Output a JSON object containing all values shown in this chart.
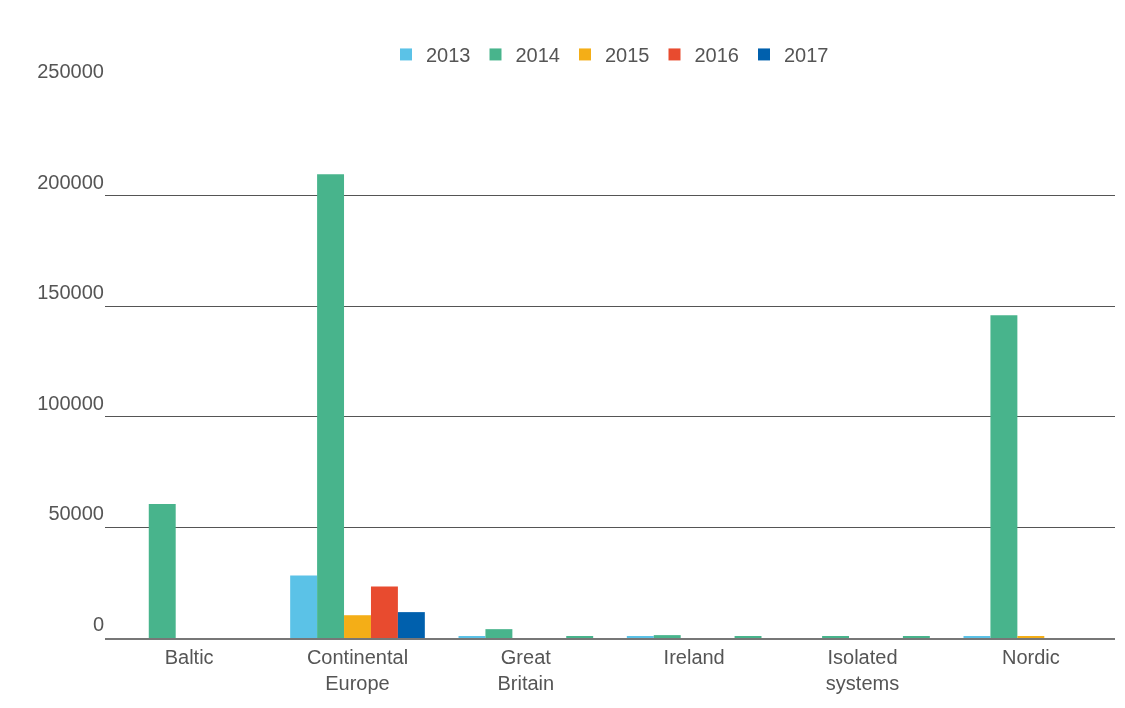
{
  "chart_data": {
    "type": "bar",
    "categories": [
      "Baltic",
      "Continental Europe",
      "Great Britain",
      "Ireland",
      "Isolated systems",
      "Nordic"
    ],
    "series": [
      {
        "name": "2013",
        "color": "#5bc2e7",
        "values": [
          0,
          28300,
          600,
          700,
          0,
          900
        ]
      },
      {
        "name": "2014",
        "color": "#48b48c",
        "values": [
          60600,
          209600,
          4000,
          1300,
          800,
          145900
        ]
      },
      {
        "name": "2015",
        "color": "#f4ae17",
        "values": [
          0,
          10300,
          0,
          0,
          0,
          900
        ]
      },
      {
        "name": "2016",
        "color": "#e84b2f",
        "values": [
          0,
          23300,
          0,
          0,
          0,
          0
        ]
      },
      {
        "name": "2017",
        "color": "#0060ad",
        "colors": [
          "#0060ad",
          "#0060ad",
          "#48b48c",
          "#48b48c",
          "#48b48c",
          "#0060ad"
        ],
        "values": [
          0,
          11700,
          800,
          800,
          800,
          0
        ]
      }
    ],
    "ylim": [
      0,
      250000
    ],
    "yticks": [
      0,
      50000,
      100000,
      150000,
      200000,
      250000
    ],
    "grid": "y",
    "legend": "top"
  }
}
